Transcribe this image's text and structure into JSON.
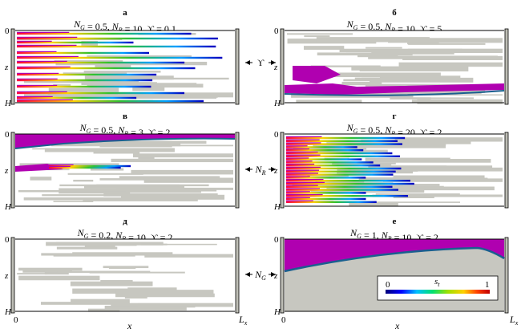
{
  "figure": {
    "panels": [
      {
        "id": "a",
        "letter": "а",
        "ng": "0.5",
        "nr": "10",
        "y": "0.1"
      },
      {
        "id": "b",
        "letter": "б",
        "ng": "0.5",
        "nr": "10",
        "y": "5"
      },
      {
        "id": "v",
        "letter": "в",
        "ng": "0.5",
        "nr": "3",
        "y": "2"
      },
      {
        "id": "g",
        "letter": "г",
        "ng": "0.5",
        "nr": "20",
        "y": "2"
      },
      {
        "id": "d",
        "letter": "д",
        "ng": "0.2",
        "nr": "10",
        "y": "2"
      },
      {
        "id": "e",
        "letter": "е",
        "ng": "1",
        "nr": "10",
        "y": "2"
      }
    ],
    "param_arrows": {
      "upsilon": "ϒ",
      "nr": "N_R",
      "ng": "N_G"
    },
    "axis": {
      "top": "0",
      "z": "z",
      "bottom": "H",
      "x_origin": "0",
      "x": "x",
      "x_end": "L_x"
    },
    "colorbar": {
      "label": "s_t",
      "min": "0",
      "max": "1"
    },
    "colors": {
      "rock": "#c7c7c0",
      "fluid": "#b000b0",
      "boundary": "#1a5f8f",
      "wall": "#bdbdb5"
    }
  }
}
